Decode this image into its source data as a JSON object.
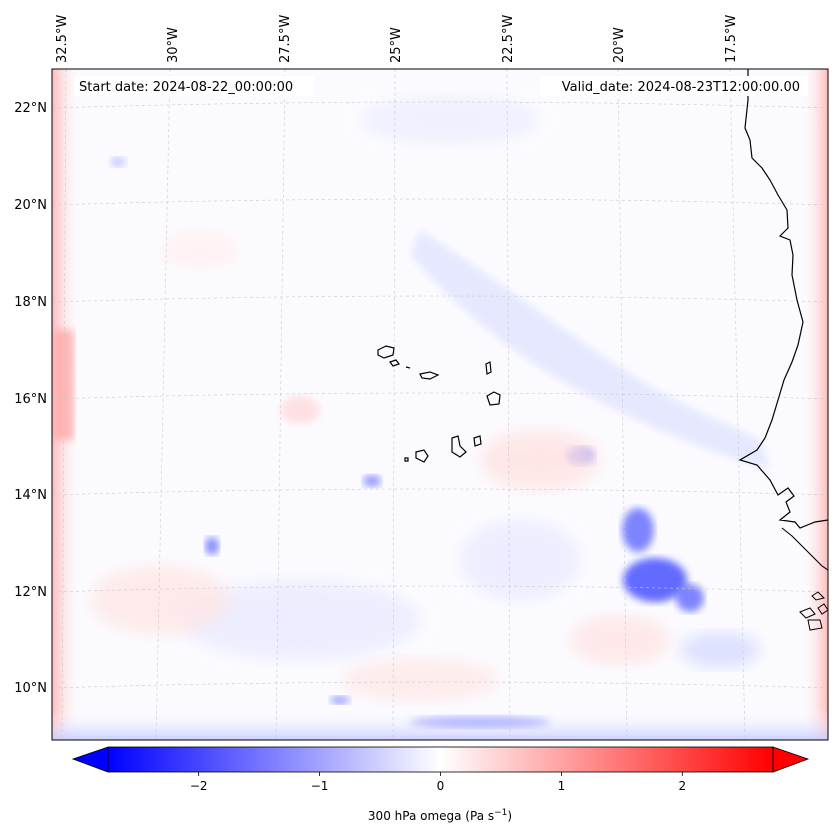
{
  "header": {
    "start_date": "Start date: 2024-08-22_00:00:00",
    "valid_date": "Valid_date: 2024-08-23T12:00:00.00"
  },
  "map": {
    "lon_labels": [
      "32.5°W",
      "30°W",
      "27.5°W",
      "25°W",
      "22.5°W",
      "20°W",
      "17.5°W"
    ],
    "lat_labels": [
      "22°N",
      "20°N",
      "18°N",
      "16°N",
      "14°N",
      "12°N",
      "10°N"
    ],
    "colors": {
      "strong_negative": "#0000ff",
      "weak_negative": "#dde0ff",
      "neutral": "#ffffff",
      "weak_positive": "#ffdcdc",
      "strong_positive": "#ff0000",
      "coastline": "#000000",
      "gridline": "#c8c8c8"
    }
  },
  "colorbar": {
    "min": -2.75,
    "max": 2.75,
    "ticks": [
      -2,
      -1,
      0,
      1,
      2
    ],
    "tick_labels": [
      "−2",
      "−1",
      "0",
      "1",
      "2"
    ],
    "extend": "both",
    "colormap": "bwr",
    "label_main": "300 hPa omega (Pa s",
    "label_sup": "−1",
    "label_end": ")"
  }
}
